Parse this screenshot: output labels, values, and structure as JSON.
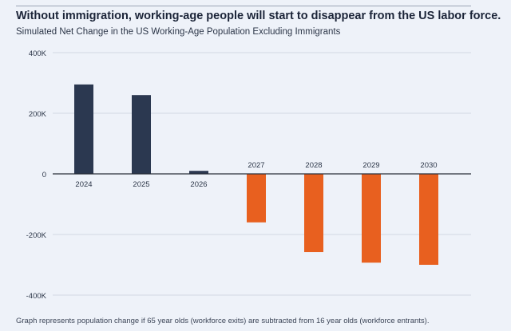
{
  "header": {
    "title": "Without immigration, working-age people will start to disappear from the US labor force.",
    "subtitle": "Simulated Net Change in the US Working-Age Population Excluding Immigrants"
  },
  "footnote": "Graph represents population change if 65 year olds (workforce exits) are subtracted from 16 year olds (workforce entrants).",
  "colors": {
    "positive": "#2b3850",
    "negative": "#e8601f",
    "grid": "#d2d8e3",
    "zero_line": "#2a2f3a",
    "text": "#2c3648"
  },
  "chart_data": {
    "type": "bar",
    "title": "Without immigration, working-age people will start to disappear from the US labor force.",
    "subtitle": "Simulated Net Change in the US Working-Age Population Excluding Immigrants",
    "xlabel": "",
    "ylabel": "",
    "categories": [
      "2024",
      "2025",
      "2026",
      "2027",
      "2028",
      "2029",
      "2030"
    ],
    "values": [
      295000,
      260000,
      10000,
      -160000,
      -258000,
      -293000,
      -300000
    ],
    "ylim": [
      -400000,
      400000
    ],
    "yticks": [
      400000,
      200000,
      0,
      -200000,
      -400000
    ],
    "ytick_labels": [
      "400K",
      "200K",
      "0",
      "-200K",
      "-400K"
    ],
    "grid": true,
    "legend": "none"
  }
}
